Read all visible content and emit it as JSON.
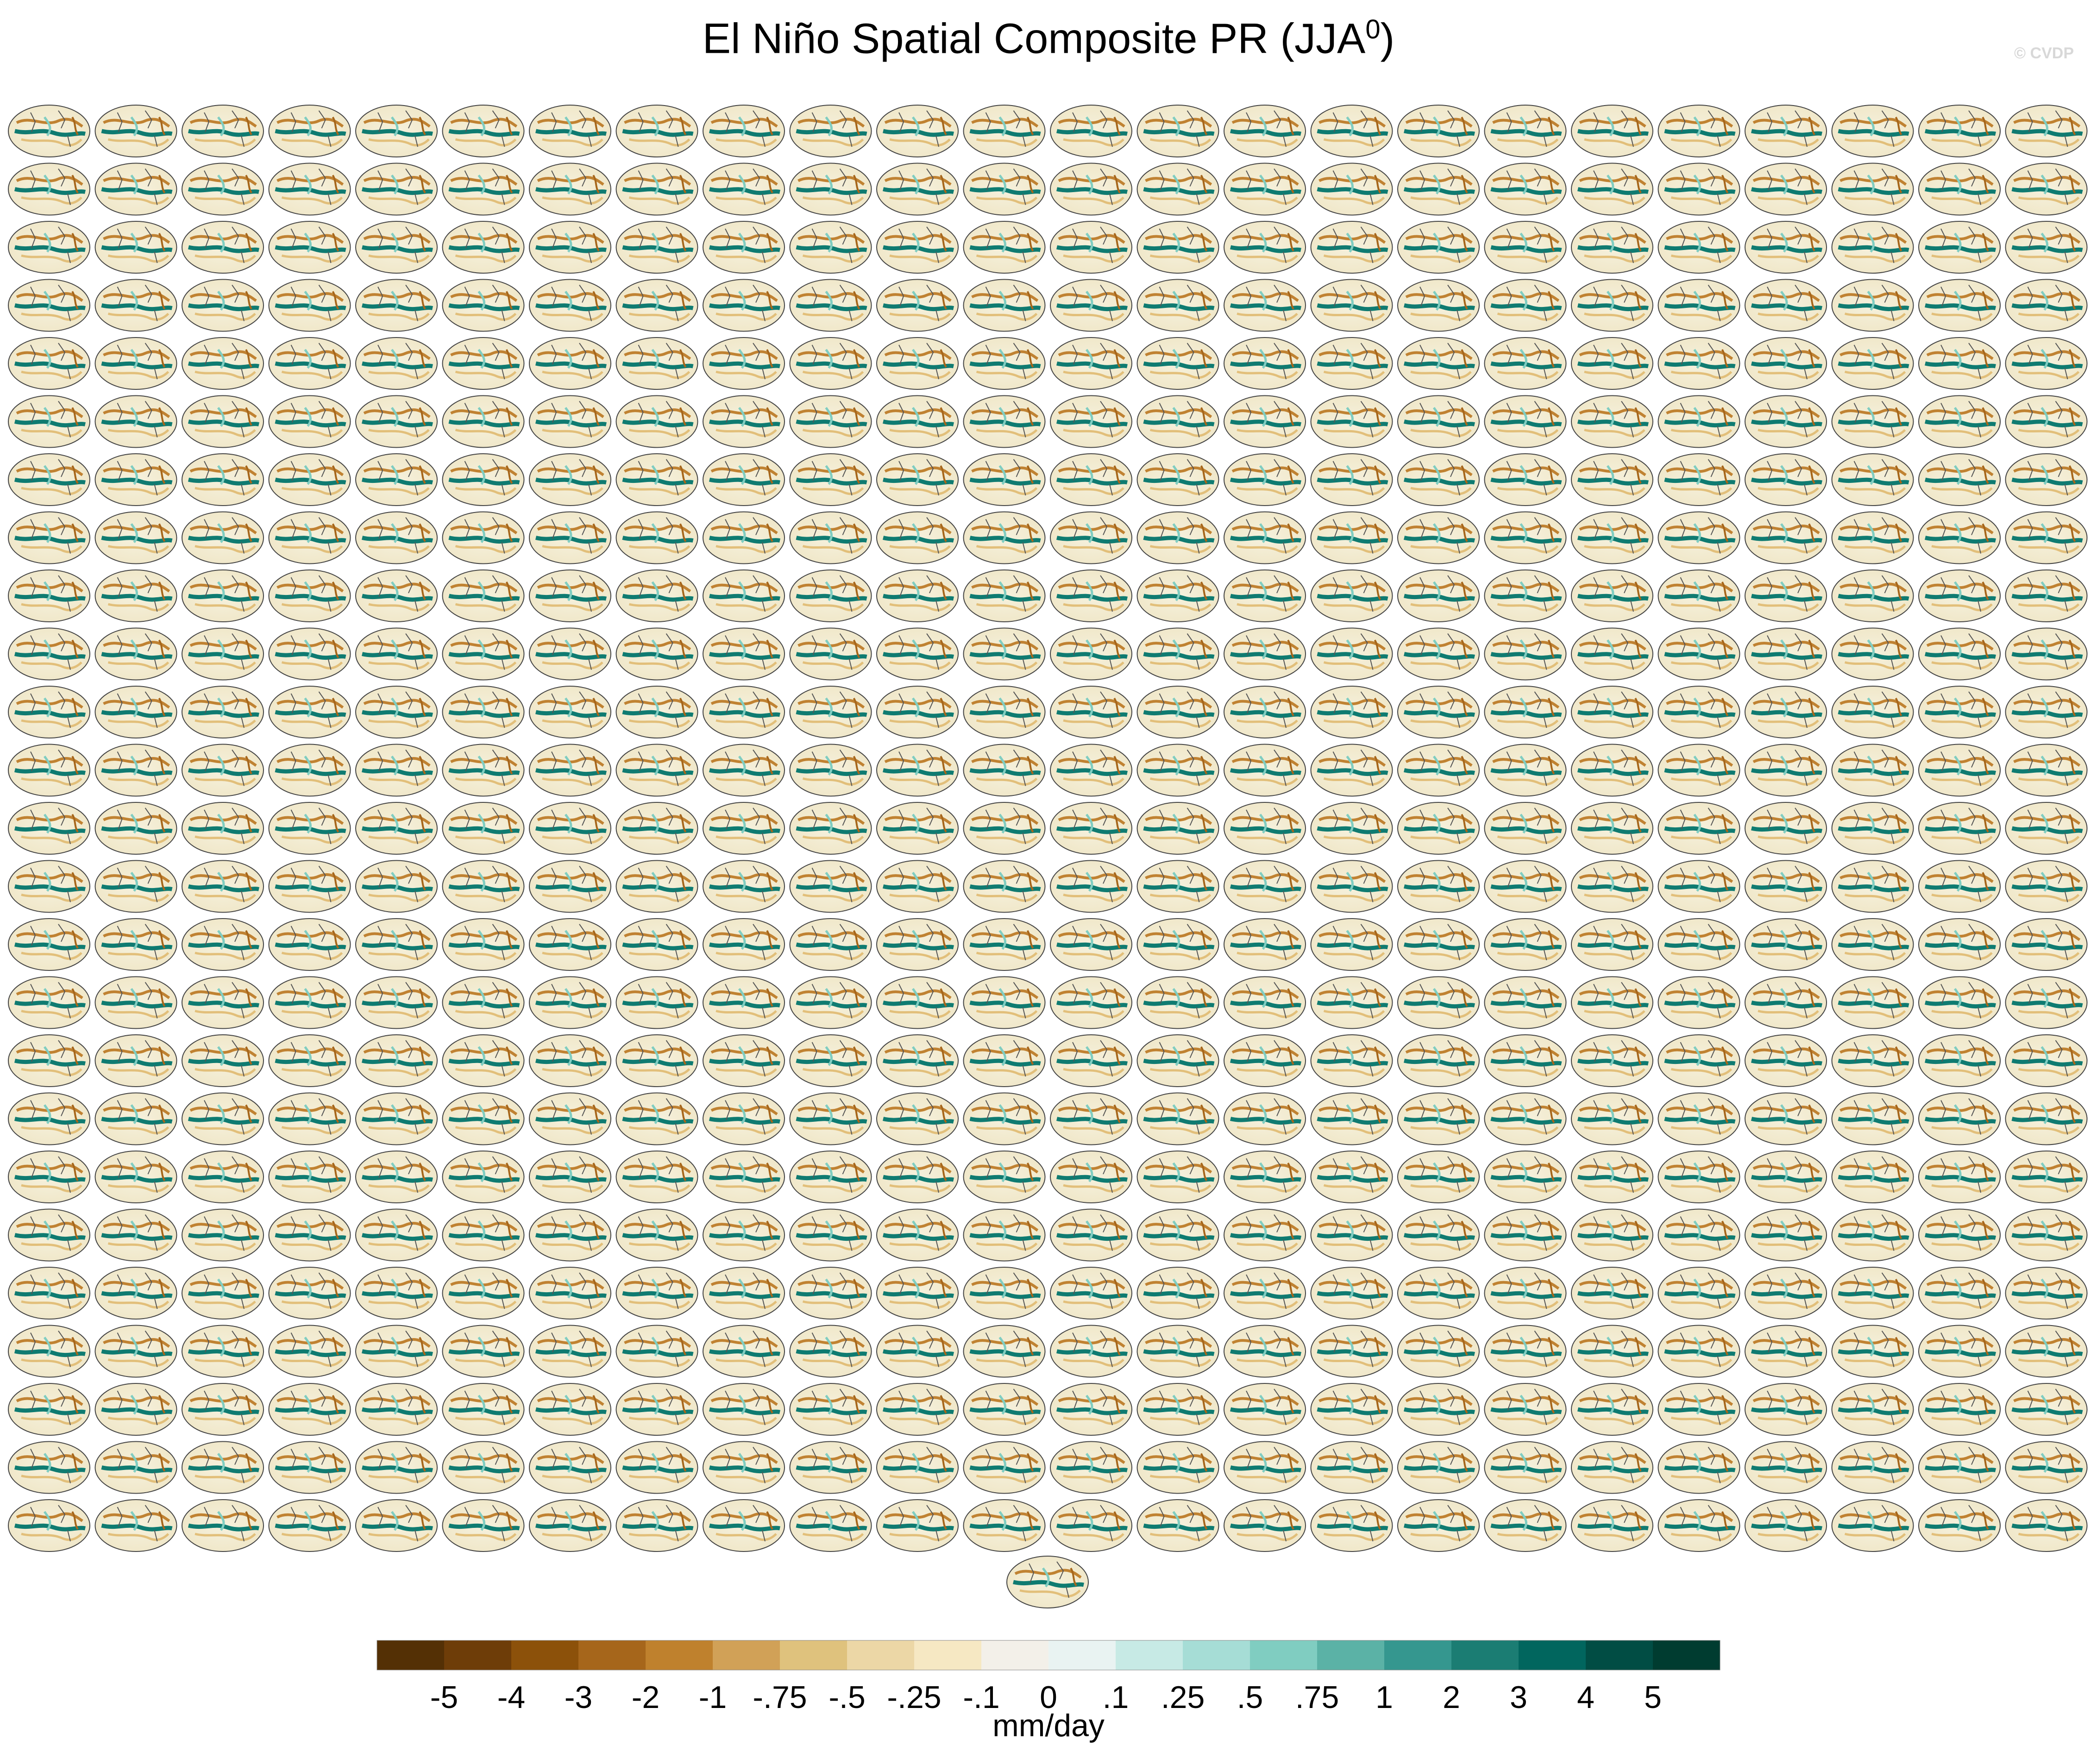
{
  "title": "El Niño Spatial Composite PR (JJA",
  "title_superscript": "0",
  "title_close": ")",
  "credit": "© CVDP",
  "chart_data": {
    "type": "heatmap",
    "description_of_layout": "multi-panel grid of global map composites",
    "panel_rows": 25,
    "panel_cols": 24,
    "extra_panels": 1,
    "colorbar": {
      "units": "mm/day",
      "levels": [
        "-5",
        "-4",
        "-3",
        "-2",
        "-1",
        "-.75",
        "-.5",
        "-.25",
        "-.1",
        "0",
        ".1",
        ".25",
        ".5",
        ".75",
        "1",
        "2",
        "3",
        "4",
        "5"
      ],
      "colors": [
        "#543005",
        "#6e3d08",
        "#8c510a",
        "#a6661b",
        "#bf812d",
        "#d1a157",
        "#dfc27d",
        "#ecd7a6",
        "#f6e8c3",
        "#f3f0e9",
        "#e9f3f2",
        "#c7eae5",
        "#a6ddd6",
        "#80cdc1",
        "#5bb2a6",
        "#35978f",
        "#1b7d73",
        "#01665e",
        "#014d44",
        "#003c30"
      ]
    }
  }
}
